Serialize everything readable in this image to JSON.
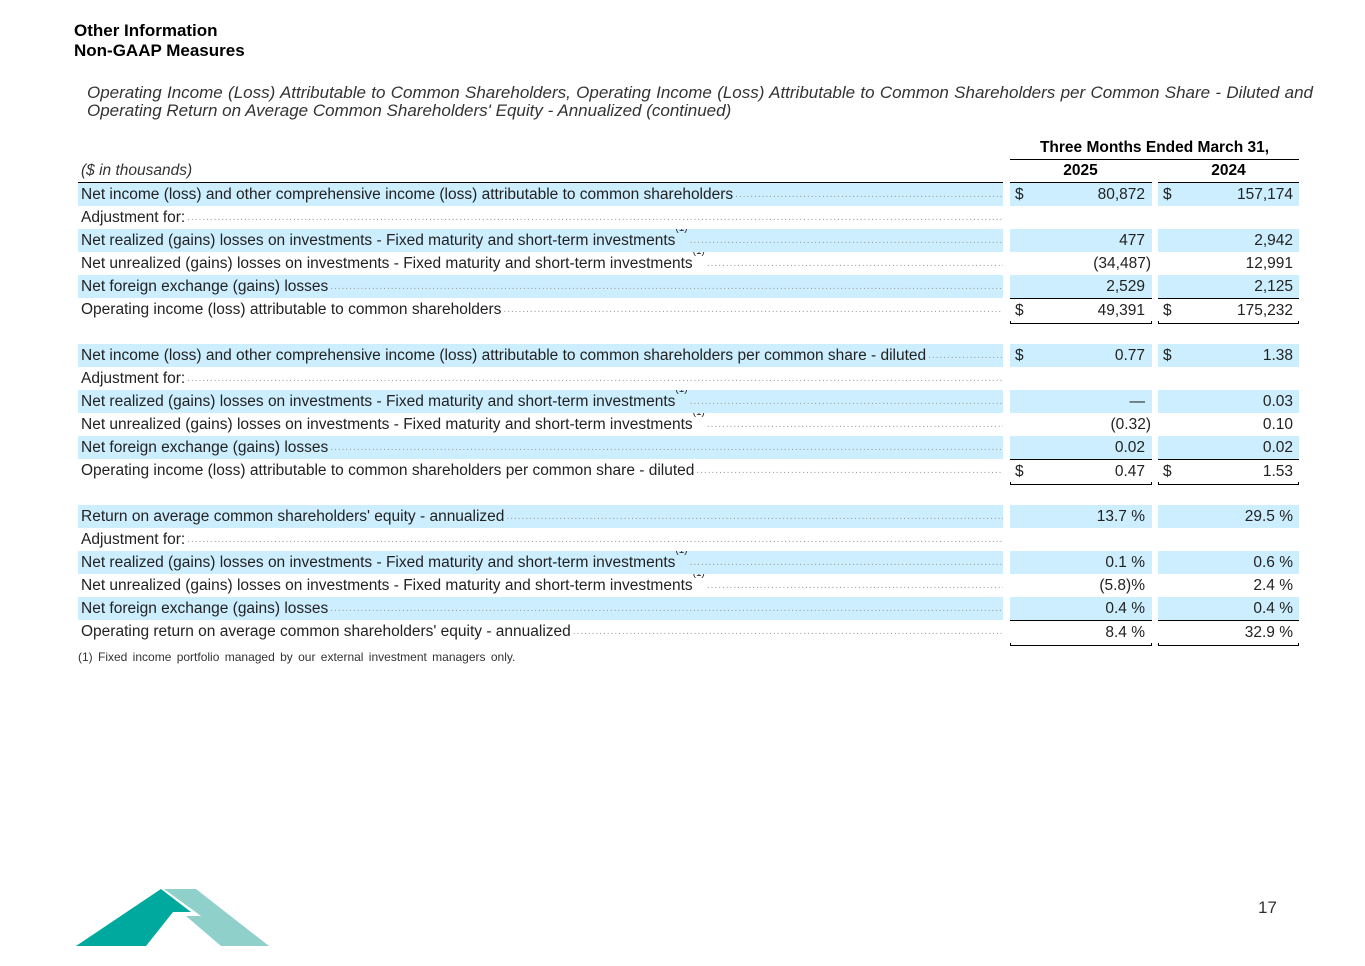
{
  "header": {
    "title": "Other Information",
    "subtitle": "Non-GAAP Measures"
  },
  "table_title": "Operating Income (Loss) Attributable to Common Shareholders, Operating Income (Loss) Attributable to Common Shareholders per Common Share - Diluted and Operating Return on Average Common Shareholders' Equity - Annualized (continued)",
  "column_group": "Three Months Ended March 31,",
  "units": "($ in thousands)",
  "years": [
    "2025",
    "2024"
  ],
  "sections": [
    {
      "rows": [
        {
          "label": "Net income (loss) and other comprehensive income (loss) attributable to common shareholders",
          "v": [
            "80,872",
            "157,174"
          ],
          "dollar": true
        },
        {
          "label": "Adjustment for:",
          "v": [
            "",
            ""
          ]
        },
        {
          "label": "Net realized (gains) losses on investments - Fixed maturity and short-term investments",
          "sup": "(1)",
          "v": [
            "477",
            "2,942"
          ]
        },
        {
          "label": "Net unrealized (gains) losses on investments - Fixed maturity and short-term investments",
          "sup": "(1)",
          "v": [
            "(34,487)",
            "12,991"
          ]
        },
        {
          "label": "Net foreign exchange (gains) losses",
          "v": [
            "2,529",
            "2,125"
          ]
        },
        {
          "label": "Operating income (loss) attributable to common shareholders",
          "v": [
            "49,391",
            "175,232"
          ],
          "dollar": true,
          "total": true
        }
      ]
    },
    {
      "rows": [
        {
          "label": "Net income (loss) and other comprehensive income (loss) attributable to common shareholders per common share - diluted",
          "v": [
            "0.77",
            "1.38"
          ],
          "dollar": true
        },
        {
          "label": "Adjustment for:",
          "v": [
            "",
            ""
          ]
        },
        {
          "label": "Net realized (gains) losses on investments - Fixed maturity and short-term investments",
          "sup": "(1)",
          "v": [
            "—",
            "0.03"
          ]
        },
        {
          "label": "Net unrealized (gains) losses on investments - Fixed maturity and short-term investments",
          "sup": "(1)",
          "v": [
            "(0.32)",
            "0.10"
          ]
        },
        {
          "label": "Net foreign exchange (gains) losses",
          "v": [
            "0.02",
            "0.02"
          ]
        },
        {
          "label": "Operating income (loss) attributable to common shareholders per common share - diluted",
          "v": [
            "0.47",
            "1.53"
          ],
          "dollar": true,
          "total": true
        }
      ]
    },
    {
      "rows": [
        {
          "label": "Return on average common shareholders' equity - annualized",
          "v": [
            "13.7 %",
            "29.5 %"
          ]
        },
        {
          "label": "Adjustment for:",
          "v": [
            "",
            ""
          ]
        },
        {
          "label": "Net realized (gains) losses on investments - Fixed maturity and short-term investments",
          "sup": "(1)",
          "v": [
            "0.1 %",
            "0.6 %"
          ]
        },
        {
          "label": "Net unrealized (gains) losses on investments - Fixed maturity and short-term investments",
          "sup": "(1)",
          "v": [
            "(5.8)%",
            "2.4 %"
          ]
        },
        {
          "label": "Net foreign exchange (gains) losses",
          "v": [
            "0.4 %",
            "0.4 %"
          ]
        },
        {
          "label": "Operating return on average common shareholders' equity - annualized",
          "v": [
            "8.4 %",
            "32.9 %"
          ],
          "total": true
        }
      ]
    }
  ],
  "currency_symbol": "$",
  "footnote": "(1) Fixed income portfolio managed by our external investment managers only.",
  "page_number": "17",
  "colors": {
    "row_shade": "#cdeefe",
    "logo_dark": "#00a99d",
    "logo_light": "#8fd0cb"
  }
}
